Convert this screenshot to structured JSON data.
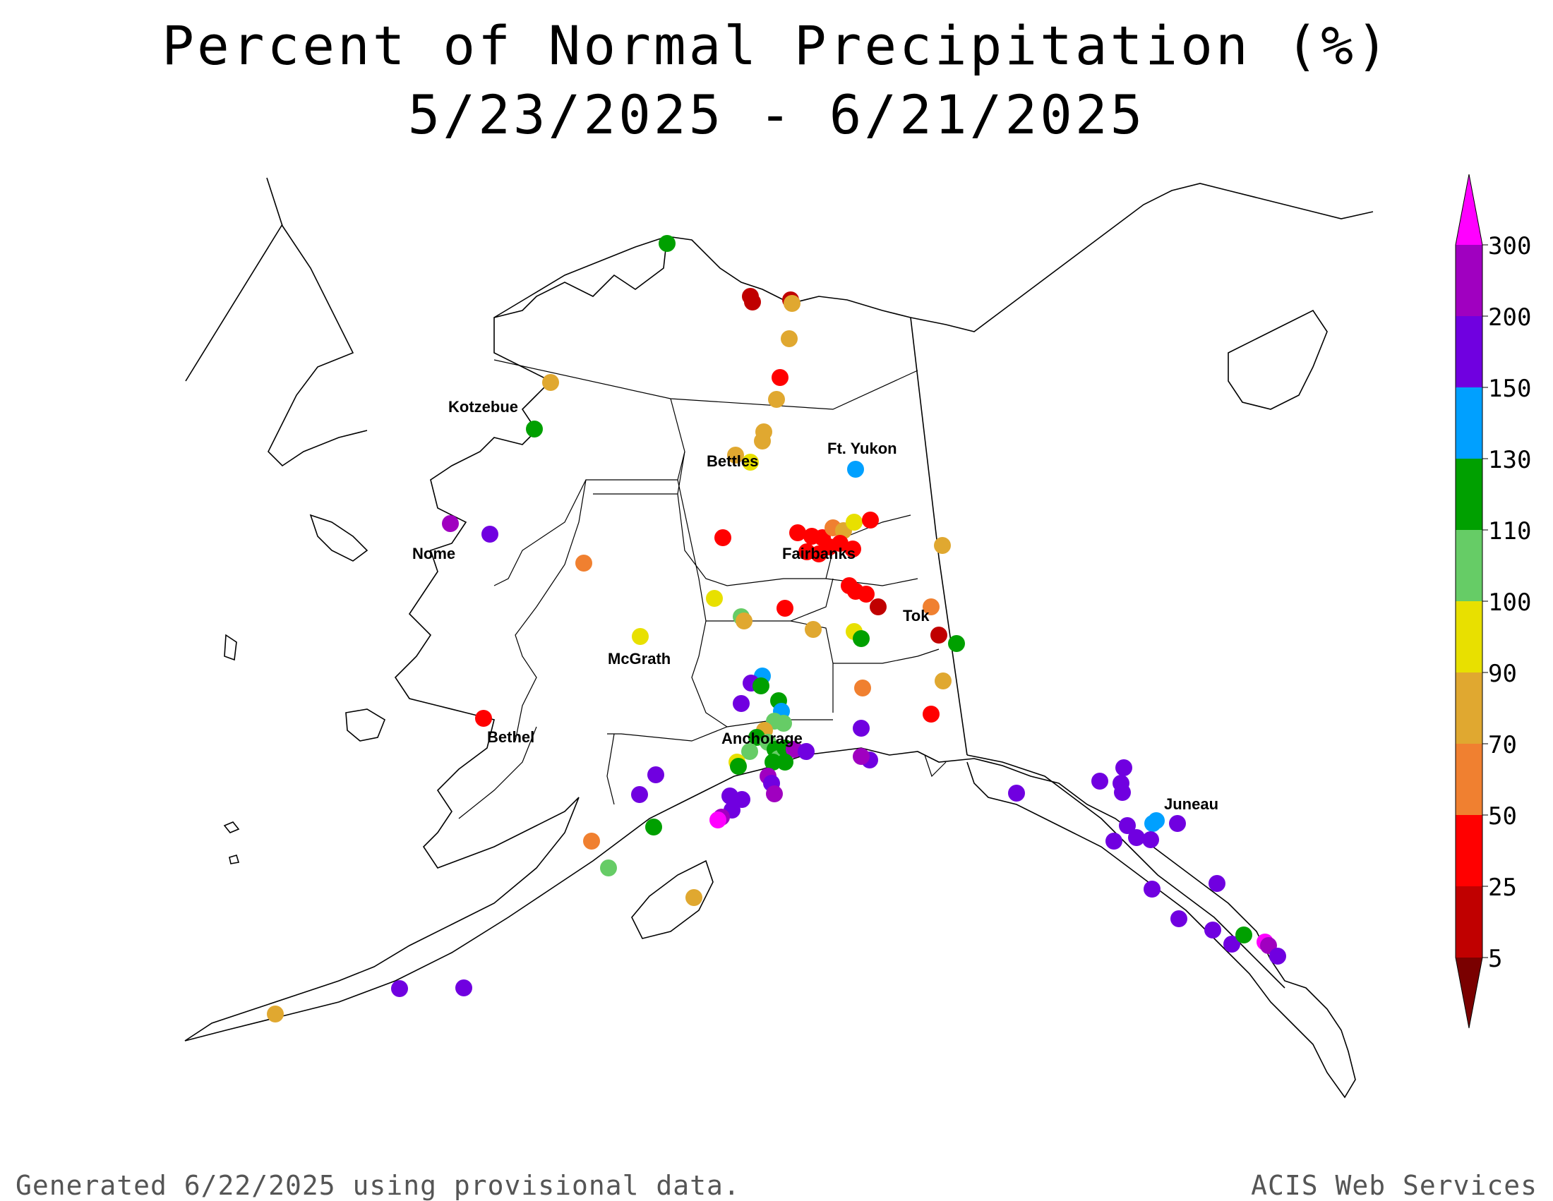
{
  "title": {
    "line1": "Percent of Normal Precipitation (%)",
    "line2": "5/23/2025 - 6/21/2025"
  },
  "footer": {
    "left": "Generated 6/22/2025 using provisional data.",
    "right": "ACIS Web Services"
  },
  "cities": [
    {
      "name": "Kotzebue"
    },
    {
      "name": "Bettles"
    },
    {
      "name": "Ft. Yukon"
    },
    {
      "name": "Nome"
    },
    {
      "name": "Fairbanks"
    },
    {
      "name": "Tok"
    },
    {
      "name": "McGrath"
    },
    {
      "name": "Bethel"
    },
    {
      "name": "Anchorage"
    },
    {
      "name": "Juneau"
    }
  ],
  "colorbar": {
    "labels": [
      "5",
      "25",
      "50",
      "70",
      "90",
      "100",
      "110",
      "130",
      "150",
      "200",
      "300"
    ],
    "colors": {
      "below_5": "#7a0000",
      "5-25": "#c00000",
      "25-50": "#ff0000",
      "50-70": "#f08030",
      "70-90": "#e0a830",
      "90-100": "#e8e000",
      "100-110": "#66cc66",
      "110-130": "#00a000",
      "130-150": "#00a0ff",
      "150-200": "#7000e0",
      "200-300": "#a000c0",
      "above_300": "#ff00ff"
    }
  }
}
